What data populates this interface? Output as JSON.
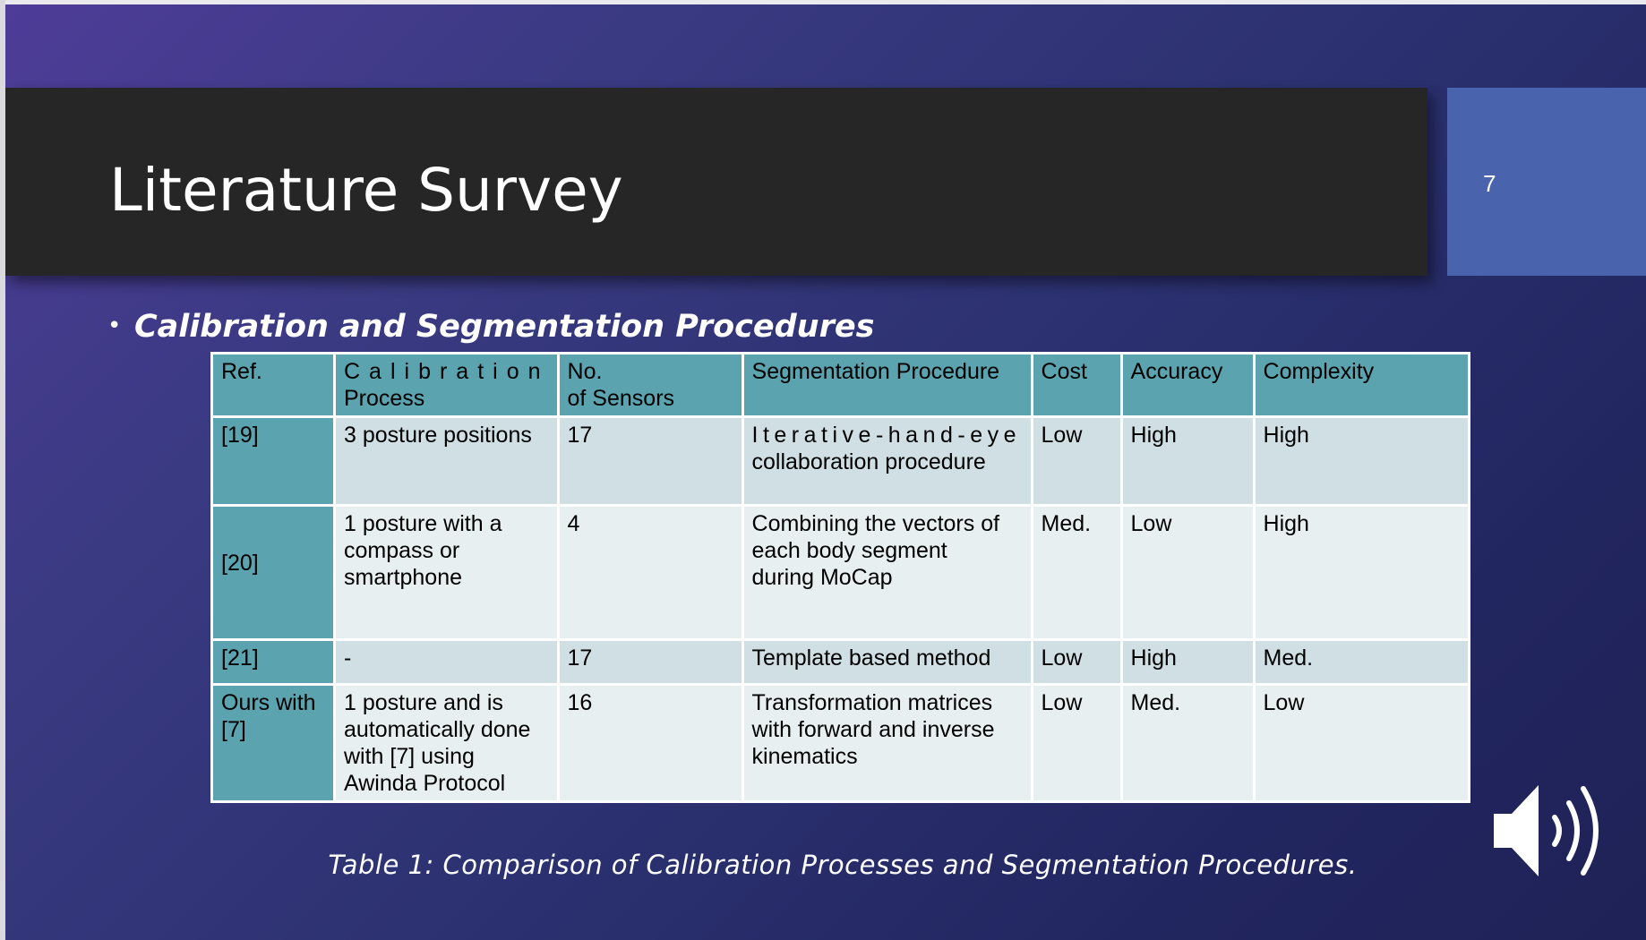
{
  "slide": {
    "title": "Literature Survey",
    "slide_number": "7",
    "bullet": "Calibration and Segmentation Procedures",
    "caption": "Table 1: Comparison of Calibration Processes and Segmentation Procedures."
  },
  "table": {
    "headers": {
      "ref": "Ref.",
      "calib_1": "Calibration",
      "calib_2": "Process",
      "sensors_1": "No.",
      "sensors_2": "of Sensors",
      "segmentation": "Segmentation Procedure",
      "cost": "Cost",
      "accuracy": "Accuracy",
      "complexity": "Complexity"
    },
    "rows": [
      {
        "ref": "[19]",
        "calib": [
          "3 posture positions"
        ],
        "sensors": "17",
        "seg": [
          "Iterative-hand-eye",
          "collaboration procedure"
        ],
        "cost": "Low",
        "accuracy": "High",
        "complexity": "High"
      },
      {
        "ref": "[20]",
        "calib": [
          "1 posture with a",
          "compass or",
          "smartphone"
        ],
        "sensors": "4",
        "seg": [
          "Combining the vectors of",
          "each body segment",
          "during MoCap"
        ],
        "cost": "Med.",
        "accuracy": "Low",
        "complexity": "High"
      },
      {
        "ref": "[21]",
        "calib": [
          "-"
        ],
        "sensors": "17",
        "seg": [
          "Template based method"
        ],
        "cost": "Low",
        "accuracy": "High",
        "complexity": "Med."
      },
      {
        "ref_1": "Ours with",
        "ref_2": "[7]",
        "calib": [
          "1 posture and is",
          "automatically done",
          "with [7] using",
          "Awinda Protocol"
        ],
        "sensors": "16",
        "seg": [
          "Transformation matrices",
          "with forward and inverse",
          "kinematics"
        ],
        "cost": "Low",
        "accuracy": "Med.",
        "complexity": "Low"
      }
    ]
  },
  "icons": {
    "audio": "speaker-volume-icon"
  },
  "colors": {
    "title_bar": "#262626",
    "number_box": "#4a63ad",
    "table_header": "#5ba3ae",
    "row_odd": "#cfdfe3",
    "row_even": "#e7eff1"
  }
}
